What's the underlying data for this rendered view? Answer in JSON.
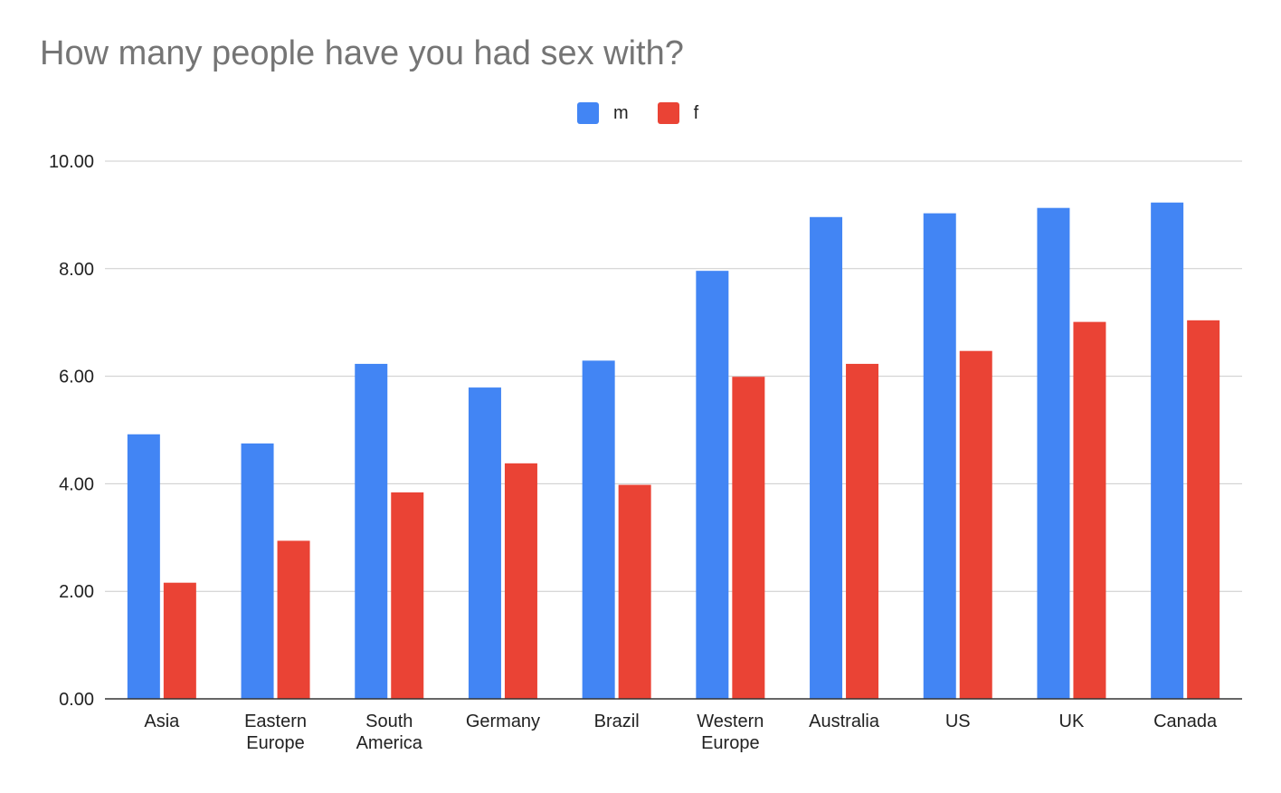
{
  "chart_data": {
    "type": "bar",
    "title": "How many people have you had sex with?",
    "xlabel": "",
    "ylabel": "",
    "categories": [
      [
        "Asia"
      ],
      [
        "Eastern",
        "Europe"
      ],
      [
        "South",
        "America"
      ],
      [
        "Germany"
      ],
      [
        "Brazil"
      ],
      [
        "Western",
        "Europe"
      ],
      [
        "Australia"
      ],
      [
        "US"
      ],
      [
        "UK"
      ],
      [
        "Canada"
      ]
    ],
    "series": [
      {
        "name": "m",
        "color": "#4285f4",
        "values": [
          4.92,
          4.75,
          6.23,
          5.79,
          6.29,
          7.96,
          8.96,
          9.03,
          9.13,
          9.23
        ]
      },
      {
        "name": "f",
        "color": "#ea4335",
        "values": [
          2.16,
          2.94,
          3.84,
          4.38,
          3.98,
          5.99,
          6.23,
          6.47,
          7.01,
          7.04
        ]
      }
    ],
    "ylim": [
      0,
      10
    ],
    "yticks": [
      "0.00",
      "2.00",
      "4.00",
      "6.00",
      "8.00",
      "10.00"
    ],
    "grid": true,
    "legend_position": "top-center"
  }
}
